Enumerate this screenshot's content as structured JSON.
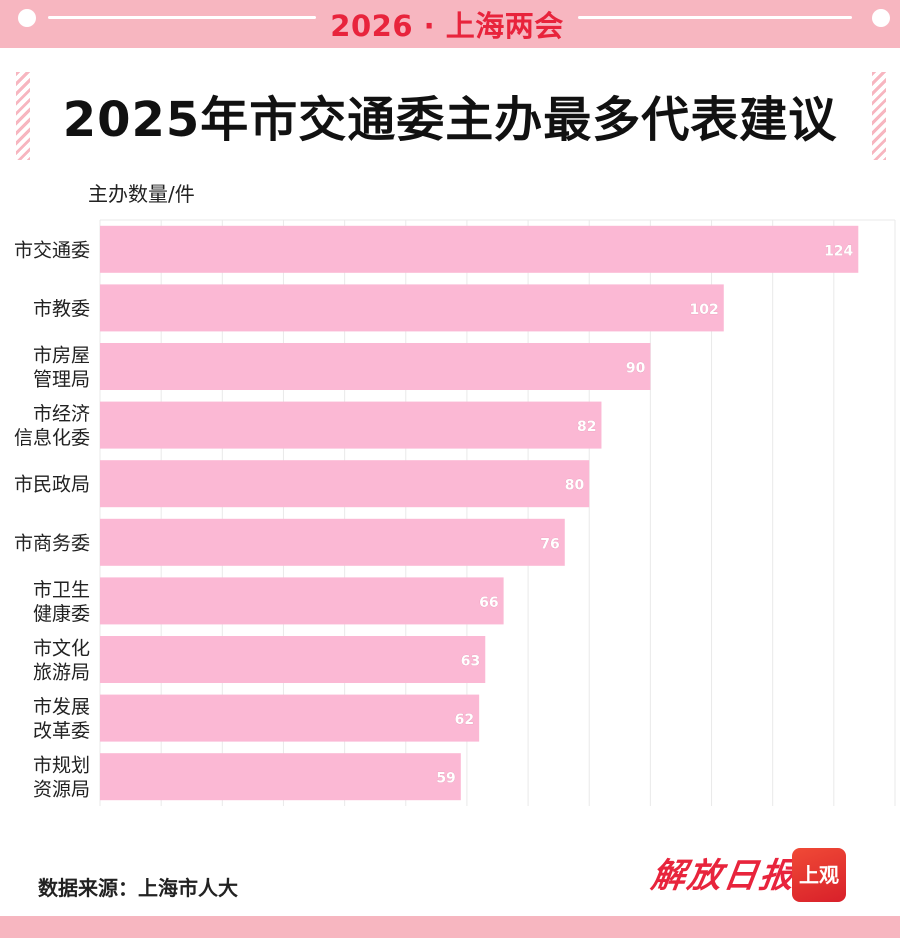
{
  "banner": {
    "title": "2026 · 上海两会"
  },
  "title": "2025年市交通委主办最多代表建议",
  "source": "数据来源：上海市人大",
  "logos": {
    "newspaper": "解放日报",
    "app": "上观"
  },
  "colors": {
    "bar": "#fbb8d4",
    "accent": "#e8243c",
    "banner": "#f7b6c0",
    "grid": "#e9e9e9"
  },
  "chart_data": {
    "type": "bar",
    "orientation": "horizontal",
    "ylabel": "主办数量/件",
    "categories": [
      [
        "市交通委"
      ],
      [
        "市教委"
      ],
      [
        "市房屋",
        "管理局"
      ],
      [
        "市经济",
        "信息化委"
      ],
      [
        "市民政局"
      ],
      [
        "市商务委"
      ],
      [
        "市卫生",
        "健康委"
      ],
      [
        "市文化",
        "旅游局"
      ],
      [
        "市发展",
        "改革委"
      ],
      [
        "市规划",
        "资源局"
      ]
    ],
    "values": [
      124,
      102,
      90,
      82,
      80,
      76,
      66,
      63,
      62,
      59
    ],
    "xlim": [
      0,
      130
    ],
    "grid": true,
    "data_labels": true
  }
}
